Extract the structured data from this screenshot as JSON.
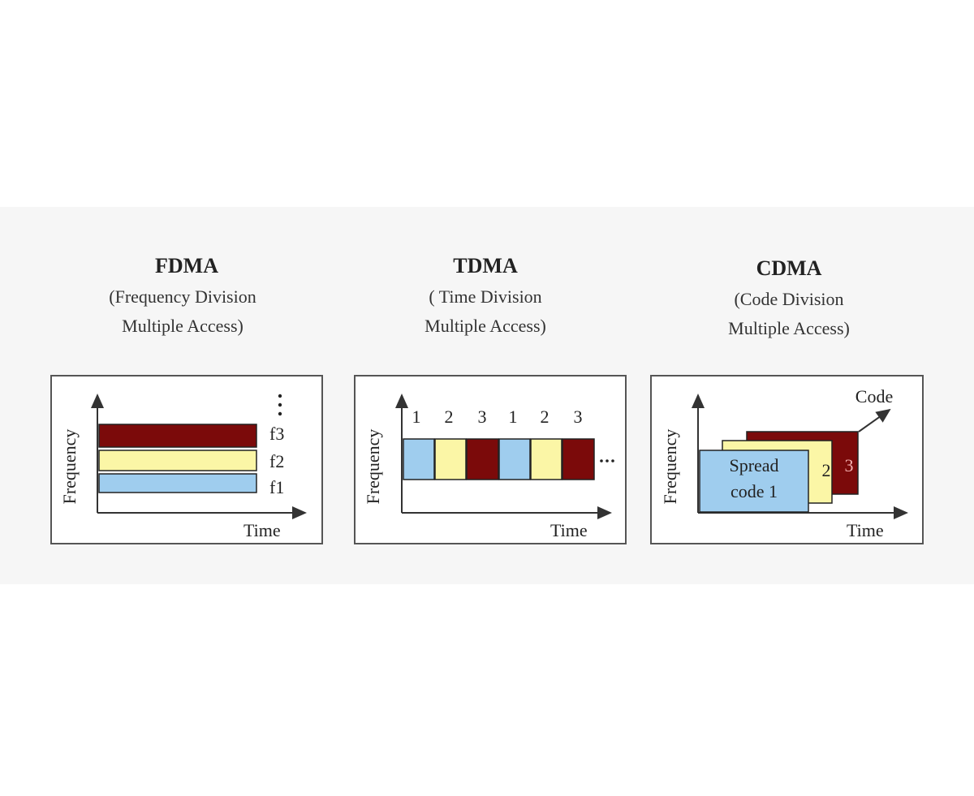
{
  "panels": [
    {
      "title": "FDMA",
      "subtitle": [
        "(Frequency Division",
        "Multiple Access)"
      ],
      "y_axis": "Frequency",
      "x_axis": "Time",
      "bands": [
        "f3",
        "f2",
        "f1"
      ]
    },
    {
      "title": "TDMA",
      "subtitle": [
        "( Time Division",
        "Multiple Access)"
      ],
      "y_axis": "Frequency",
      "x_axis": "Time",
      "slots": [
        "1",
        "2",
        "3",
        "1",
        "2",
        "3"
      ]
    },
    {
      "title": "CDMA",
      "subtitle": [
        "(Code Division",
        "Multiple Access)"
      ],
      "y_axis": "Frequency",
      "x_axis": "Time",
      "z_axis": "Code",
      "spread_code": [
        "Spread",
        "code 1"
      ],
      "codes": [
        "2",
        "3"
      ]
    }
  ]
}
